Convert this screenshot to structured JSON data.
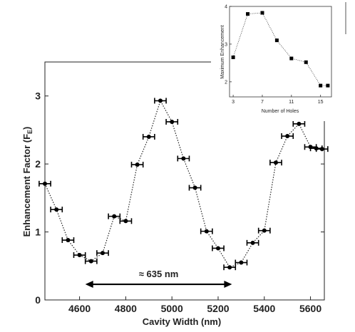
{
  "chart_data": [
    {
      "type": "line",
      "title": "",
      "xlabel": "Cavity Width (nm)",
      "ylabel": "Enhancement Factor (F",
      "ylabel_sub": "E",
      "ylabel_close": ")",
      "xlim": [
        4450,
        5660
      ],
      "ylim": [
        0,
        3.5
      ],
      "xticks": [
        4600,
        4800,
        5000,
        5200,
        5400,
        5600
      ],
      "yticks": [
        0,
        1,
        2,
        3
      ],
      "grid": false,
      "line_style": "dotted",
      "marker": "circle",
      "series": [
        {
          "x": [
            4450,
            4500,
            4550,
            4600,
            4650,
            4700,
            4750,
            4800,
            4850,
            4900,
            4950,
            5000,
            5050,
            5100,
            5150,
            5200,
            5250,
            5300,
            5350,
            5400,
            5450,
            5500,
            5550,
            5600,
            5625,
            5650
          ],
          "y": [
            1.71,
            1.33,
            0.88,
            0.66,
            0.57,
            0.69,
            1.23,
            1.16,
            1.99,
            2.4,
            2.93,
            2.62,
            2.08,
            1.65,
            1.01,
            0.76,
            0.48,
            0.55,
            0.84,
            1.02,
            2.02,
            2.41,
            2.59,
            2.25,
            2.23,
            2.22
          ],
          "xerr": 25
        }
      ],
      "annotation": {
        "text": "≈ 635 nm",
        "x_start": 4625,
        "x_end": 5260,
        "y": 0.23
      }
    },
    {
      "type": "scatter",
      "title": "",
      "xlabel": "Number of Holes",
      "ylabel": "Maximum Enhancement",
      "xlim": [
        2.5,
        16.5
      ],
      "ylim": [
        1.6,
        4
      ],
      "xticks": [
        3,
        7,
        11,
        15
      ],
      "yticks": [
        2,
        3,
        4
      ],
      "marker": "square",
      "line_style": "dotted",
      "series": [
        {
          "x": [
            3,
            5,
            7,
            9,
            11,
            13,
            15,
            16
          ],
          "y": [
            2.65,
            3.8,
            3.83,
            3.1,
            2.62,
            2.52,
            1.9,
            1.9
          ]
        }
      ]
    }
  ]
}
